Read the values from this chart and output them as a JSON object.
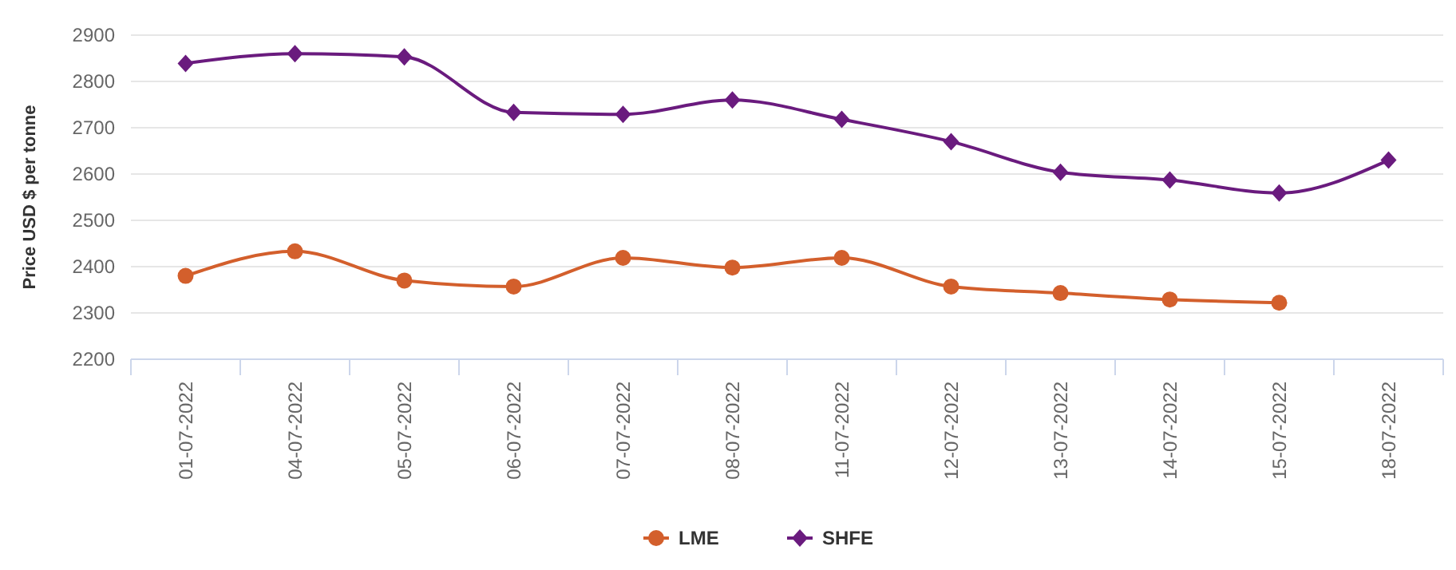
{
  "chart_data": {
    "type": "line",
    "ylabel": "Price USD $ per tonne",
    "categories": [
      "01-07-2022",
      "04-07-2022",
      "05-07-2022",
      "06-07-2022",
      "07-07-2022",
      "08-07-2022",
      "11-07-2022",
      "12-07-2022",
      "13-07-2022",
      "14-07-2022",
      "15-07-2022",
      "18-07-2022"
    ],
    "series": [
      {
        "name": "LME",
        "color": "#d35f2c",
        "marker": "circle",
        "values": [
          2380,
          2433,
          2370,
          2357,
          2419,
          2398,
          2419,
          2357,
          2343,
          2329,
          2322,
          null
        ]
      },
      {
        "name": "SHFE",
        "color": "#6a1b7e",
        "marker": "diamond",
        "values": [
          2839,
          2860,
          2853,
          2733,
          2729,
          2760,
          2718,
          2670,
          2604,
          2587,
          2559,
          2630
        ]
      }
    ],
    "ylim": [
      2200,
      2900
    ],
    "yticks": [
      2200,
      2300,
      2400,
      2500,
      2600,
      2700,
      2800,
      2900
    ],
    "grid": "y",
    "legend": "bottom"
  }
}
